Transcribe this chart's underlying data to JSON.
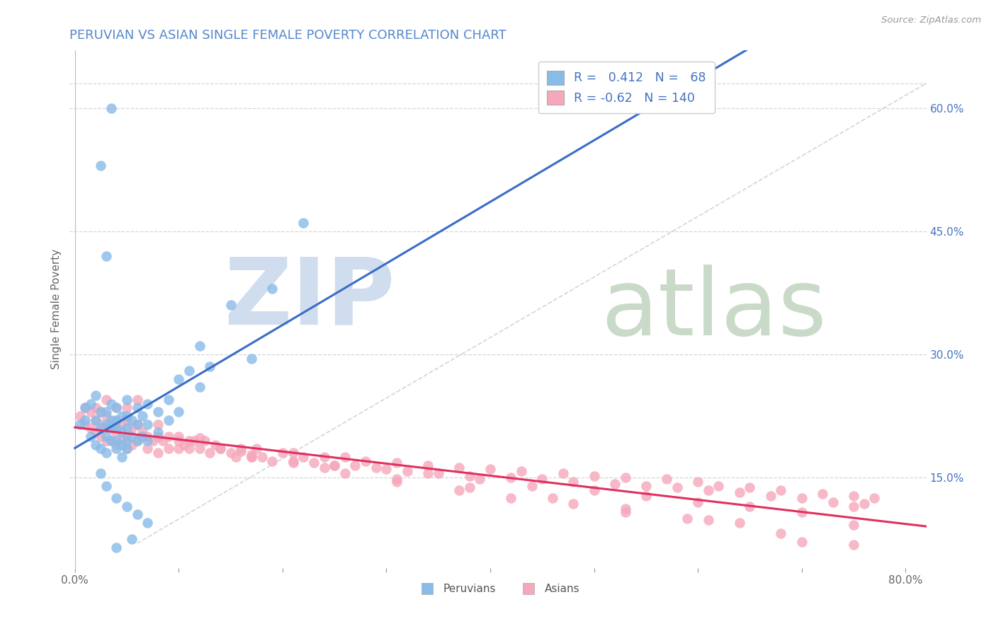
{
  "title": "PERUVIAN VS ASIAN SINGLE FEMALE POVERTY CORRELATION CHART",
  "source": "Source: ZipAtlas.com",
  "ylabel": "Single Female Poverty",
  "xlim": [
    -0.005,
    0.82
  ],
  "ylim": [
    0.04,
    0.67
  ],
  "ytick_labels_right": [
    "60.0%",
    "45.0%",
    "30.0%",
    "15.0%"
  ],
  "ytick_positions_right": [
    0.6,
    0.45,
    0.3,
    0.15
  ],
  "peruvian_R": 0.412,
  "peruvian_N": 68,
  "asian_R": -0.62,
  "asian_N": 140,
  "peruvian_color": "#89BBE8",
  "asian_color": "#F5A8BB",
  "peruvian_line_color": "#3A6CC8",
  "asian_line_color": "#E03060",
  "bg_color": "#FFFFFF",
  "grid_color": "#CCCCCC",
  "title_color": "#5588CC",
  "legend_text_color": "#4472C4",
  "watermark_zip_color": "#C8D8EC",
  "watermark_atlas_color": "#B8CEB8",
  "peruvian_x": [
    0.005,
    0.01,
    0.01,
    0.015,
    0.015,
    0.02,
    0.02,
    0.02,
    0.025,
    0.025,
    0.025,
    0.03,
    0.03,
    0.03,
    0.03,
    0.035,
    0.035,
    0.035,
    0.035,
    0.04,
    0.04,
    0.04,
    0.04,
    0.04,
    0.045,
    0.045,
    0.045,
    0.05,
    0.05,
    0.05,
    0.05,
    0.05,
    0.055,
    0.055,
    0.06,
    0.06,
    0.06,
    0.065,
    0.065,
    0.07,
    0.07,
    0.07,
    0.08,
    0.08,
    0.09,
    0.09,
    0.1,
    0.1,
    0.11,
    0.12,
    0.12,
    0.13,
    0.15,
    0.17,
    0.19,
    0.22,
    0.025,
    0.03,
    0.04,
    0.05,
    0.06,
    0.07,
    0.055,
    0.04,
    0.035,
    0.025,
    0.03,
    0.045
  ],
  "peruvian_y": [
    0.215,
    0.22,
    0.235,
    0.2,
    0.24,
    0.19,
    0.22,
    0.25,
    0.185,
    0.21,
    0.23,
    0.18,
    0.2,
    0.215,
    0.23,
    0.195,
    0.21,
    0.22,
    0.24,
    0.185,
    0.195,
    0.21,
    0.22,
    0.235,
    0.19,
    0.205,
    0.225,
    0.185,
    0.195,
    0.21,
    0.225,
    0.245,
    0.2,
    0.22,
    0.195,
    0.215,
    0.235,
    0.2,
    0.225,
    0.195,
    0.215,
    0.24,
    0.205,
    0.23,
    0.22,
    0.245,
    0.23,
    0.27,
    0.28,
    0.26,
    0.31,
    0.285,
    0.36,
    0.295,
    0.38,
    0.46,
    0.155,
    0.14,
    0.125,
    0.115,
    0.105,
    0.095,
    0.075,
    0.065,
    0.6,
    0.53,
    0.42,
    0.175
  ],
  "asian_x": [
    0.005,
    0.01,
    0.01,
    0.015,
    0.015,
    0.02,
    0.02,
    0.02,
    0.025,
    0.025,
    0.03,
    0.03,
    0.03,
    0.035,
    0.035,
    0.04,
    0.04,
    0.04,
    0.045,
    0.045,
    0.05,
    0.05,
    0.05,
    0.055,
    0.055,
    0.06,
    0.06,
    0.065,
    0.07,
    0.07,
    0.075,
    0.08,
    0.08,
    0.085,
    0.09,
    0.09,
    0.1,
    0.1,
    0.105,
    0.11,
    0.115,
    0.12,
    0.125,
    0.13,
    0.135,
    0.14,
    0.15,
    0.155,
    0.16,
    0.17,
    0.175,
    0.18,
    0.19,
    0.2,
    0.21,
    0.22,
    0.23,
    0.24,
    0.25,
    0.26,
    0.27,
    0.28,
    0.3,
    0.31,
    0.32,
    0.34,
    0.35,
    0.37,
    0.38,
    0.4,
    0.42,
    0.43,
    0.45,
    0.47,
    0.48,
    0.5,
    0.52,
    0.53,
    0.55,
    0.57,
    0.58,
    0.6,
    0.61,
    0.62,
    0.64,
    0.65,
    0.67,
    0.68,
    0.7,
    0.72,
    0.73,
    0.75,
    0.76,
    0.77,
    0.025,
    0.04,
    0.06,
    0.08,
    0.11,
    0.14,
    0.17,
    0.21,
    0.25,
    0.29,
    0.34,
    0.39,
    0.44,
    0.5,
    0.55,
    0.6,
    0.65,
    0.7,
    0.75,
    0.03,
    0.05,
    0.08,
    0.12,
    0.16,
    0.21,
    0.26,
    0.31,
    0.37,
    0.42,
    0.48,
    0.53,
    0.59,
    0.64,
    0.7,
    0.75,
    0.04,
    0.1,
    0.17,
    0.24,
    0.31,
    0.38,
    0.46,
    0.53,
    0.61,
    0.68,
    0.75
  ],
  "asian_y": [
    0.225,
    0.215,
    0.235,
    0.21,
    0.23,
    0.205,
    0.22,
    0.235,
    0.2,
    0.215,
    0.195,
    0.21,
    0.225,
    0.195,
    0.215,
    0.19,
    0.205,
    0.22,
    0.195,
    0.215,
    0.185,
    0.2,
    0.22,
    0.19,
    0.21,
    0.195,
    0.215,
    0.205,
    0.185,
    0.2,
    0.195,
    0.18,
    0.2,
    0.195,
    0.185,
    0.2,
    0.185,
    0.2,
    0.19,
    0.185,
    0.195,
    0.185,
    0.195,
    0.18,
    0.19,
    0.185,
    0.18,
    0.175,
    0.185,
    0.175,
    0.185,
    0.175,
    0.17,
    0.18,
    0.17,
    0.175,
    0.168,
    0.175,
    0.165,
    0.175,
    0.165,
    0.17,
    0.16,
    0.168,
    0.158,
    0.165,
    0.155,
    0.162,
    0.152,
    0.16,
    0.15,
    0.158,
    0.148,
    0.155,
    0.145,
    0.152,
    0.142,
    0.15,
    0.14,
    0.148,
    0.138,
    0.145,
    0.135,
    0.14,
    0.132,
    0.138,
    0.128,
    0.135,
    0.125,
    0.13,
    0.12,
    0.128,
    0.118,
    0.125,
    0.23,
    0.21,
    0.245,
    0.2,
    0.195,
    0.185,
    0.175,
    0.18,
    0.165,
    0.162,
    0.155,
    0.148,
    0.14,
    0.135,
    0.128,
    0.12,
    0.115,
    0.108,
    0.115,
    0.245,
    0.235,
    0.215,
    0.198,
    0.182,
    0.168,
    0.155,
    0.145,
    0.135,
    0.125,
    0.118,
    0.108,
    0.1,
    0.095,
    0.072,
    0.092,
    0.235,
    0.195,
    0.178,
    0.162,
    0.148,
    0.138,
    0.125,
    0.112,
    0.098,
    0.082,
    0.068
  ]
}
